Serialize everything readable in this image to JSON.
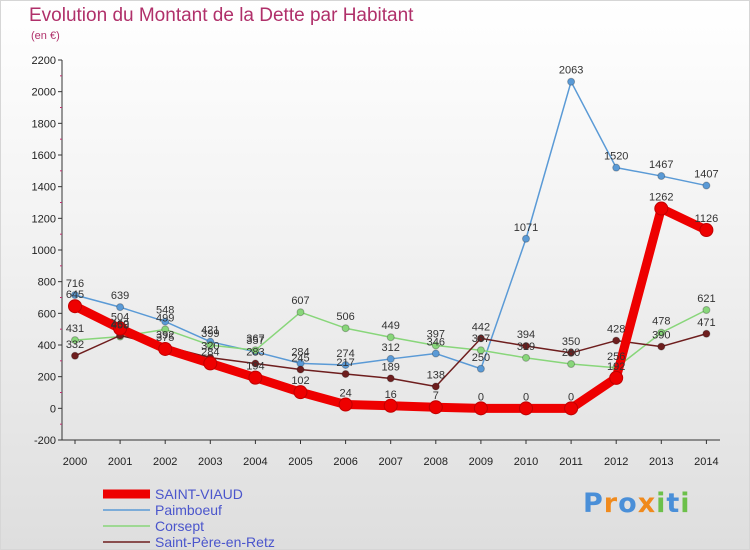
{
  "chart_data": {
    "type": "line",
    "title": "Evolution du Montant de la Dette par Habitant",
    "subtitle": "(en €)",
    "x": [
      2000,
      2001,
      2002,
      2003,
      2004,
      2005,
      2006,
      2007,
      2008,
      2009,
      2010,
      2011,
      2012,
      2013,
      2014
    ],
    "xlabels": [
      "2000",
      "2001",
      "2002",
      "2003",
      "2004",
      "2005",
      "2006",
      "2007",
      "2008",
      "2009",
      "2010",
      "2011",
      "2012",
      "2013",
      "2014"
    ],
    "ylim": [
      -200,
      2200
    ],
    "yticks": [
      -200,
      0,
      200,
      400,
      600,
      800,
      1000,
      1200,
      1400,
      1600,
      1800,
      2000,
      2200
    ],
    "ytick_labels": [
      "-200",
      "0",
      "200",
      "400",
      "600",
      "800",
      "1000",
      "1200",
      "1400",
      "1600",
      "1800",
      "2000",
      "2200"
    ],
    "grid": false,
    "legend": "bottom-left",
    "series": [
      {
        "name": "SAINT-VIAUD",
        "color": "#ee0000",
        "values": [
          645,
          504,
          375,
          284,
          194,
          102,
          24,
          16,
          7,
          0,
          0,
          0,
          192,
          1262,
          1126
        ],
        "labels": [
          "645",
          "504",
          "375",
          "284",
          "194",
          "102",
          "24",
          "16",
          "7",
          "0",
          "0",
          "0",
          "192",
          "1262",
          "1126"
        ]
      },
      {
        "name": "Paimboeuf",
        "color": "#5a9ad6",
        "values": [
          716,
          639,
          548,
          421,
          357,
          284,
          274,
          312,
          346,
          250,
          1071,
          2063,
          1520,
          1467,
          1407
        ],
        "labels": [
          "716",
          "639",
          "548",
          "421",
          "357",
          "284",
          "274",
          "312",
          "346",
          "250",
          "1071",
          "2063",
          "1520",
          "1467",
          "1407"
        ]
      },
      {
        "name": "Corsept",
        "color": "#88d67a",
        "values": [
          431,
          453,
          499,
          399,
          367,
          607,
          506,
          449,
          397,
          367,
          319,
          280,
          256,
          478,
          621
        ],
        "labels": [
          "431",
          "453",
          "499",
          "399",
          "367",
          "607",
          "506",
          "449",
          "397",
          "367",
          "319",
          "280",
          "256",
          "478",
          "621"
        ]
      },
      {
        "name": "Saint-Père-en-Retz",
        "color": "#6e1e1e",
        "values": [
          332,
          460,
          392,
          320,
          283,
          245,
          217,
          189,
          138,
          442,
          394,
          350,
          428,
          390,
          471
        ],
        "labels": [
          "332",
          "460",
          "392",
          "320",
          "283",
          "245",
          "217",
          "189",
          "138",
          "442",
          "394",
          "350",
          "428",
          "390",
          "471"
        ]
      }
    ]
  },
  "logo": {
    "letters": [
      "P",
      "r",
      "o",
      "x",
      "i",
      "t",
      "i"
    ],
    "colors": [
      "#4a8fd8",
      "#f08a1c",
      "#4a8fd8",
      "#f08a1c",
      "#6cc04a",
      "#4a8fd8",
      "#6cc04a"
    ]
  }
}
